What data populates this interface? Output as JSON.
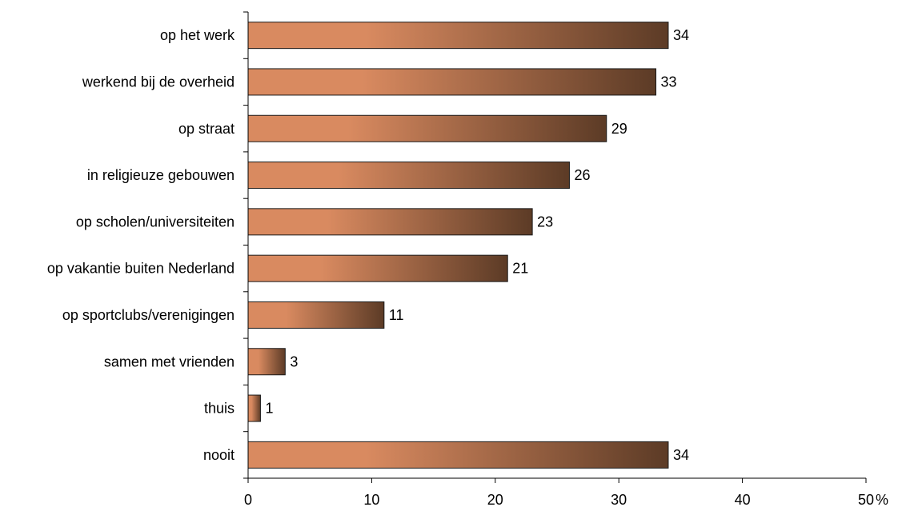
{
  "chart_data": {
    "type": "bar",
    "orientation": "horizontal",
    "categories": [
      "op het werk",
      "werkend bij de overheid",
      "op straat",
      "in religieuze gebouwen",
      "op scholen/universiteiten",
      "op vakantie buiten Nederland",
      "op sportclubs/verenigingen",
      "samen met vrienden",
      "thuis",
      "nooit"
    ],
    "values": [
      34,
      33,
      29,
      26,
      23,
      21,
      11,
      3,
      1,
      34
    ],
    "value_labels": [
      "34",
      "33",
      "29",
      "26",
      "23",
      "21",
      "11",
      "3",
      "1",
      "34"
    ],
    "xlim": [
      0,
      50
    ],
    "xticks": [
      0,
      10,
      20,
      30,
      40,
      50
    ],
    "xtick_labels": [
      "0",
      "10",
      "20",
      "30",
      "40",
      "50"
    ],
    "xunit": "%",
    "grid": false,
    "legend": "none",
    "colors": {
      "bar_light": "#d98a60",
      "bar_dark": "#5c3b26",
      "outline": "#1a1a1a"
    }
  }
}
